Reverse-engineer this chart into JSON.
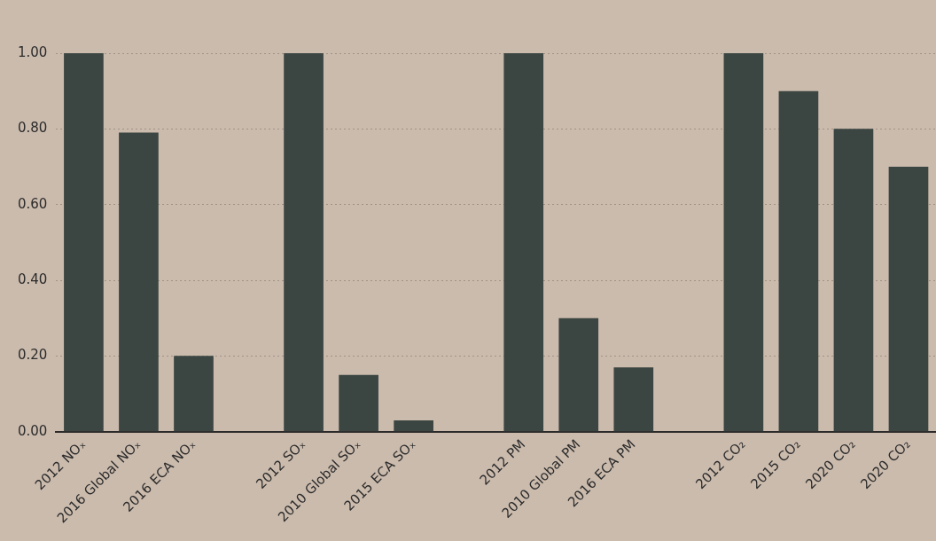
{
  "chart_data": {
    "type": "bar",
    "categories": [
      "2012 NOₓ",
      "2016 Global NOₓ",
      "2016 ECA NOₓ",
      null,
      "2012 SOₓ",
      "2010 Global SOₓ",
      "2015 ECA SOₓ",
      null,
      "2012 PM",
      "2010 Global PM",
      "2016 ECA PM",
      null,
      "2012 CO₂",
      "2015 CO₂",
      "2020 CO₂",
      "2020 CO₂"
    ],
    "values": [
      1.0,
      0.79,
      0.2,
      null,
      1.0,
      0.15,
      0.03,
      null,
      1.0,
      0.3,
      0.17,
      null,
      1.0,
      0.9,
      0.8,
      0.7
    ],
    "color": "#3b4541",
    "ylim": [
      0,
      1
    ],
    "yticks": [
      {
        "value": 0,
        "label": "0.00"
      },
      {
        "value": 0.2,
        "label": "0.20"
      },
      {
        "value": 0.4,
        "label": "0.40"
      },
      {
        "value": 0.6,
        "label": "0.60"
      },
      {
        "value": 0.8,
        "label": "0.80"
      },
      {
        "value": 1,
        "label": "1.00"
      }
    ],
    "grid": "y"
  }
}
